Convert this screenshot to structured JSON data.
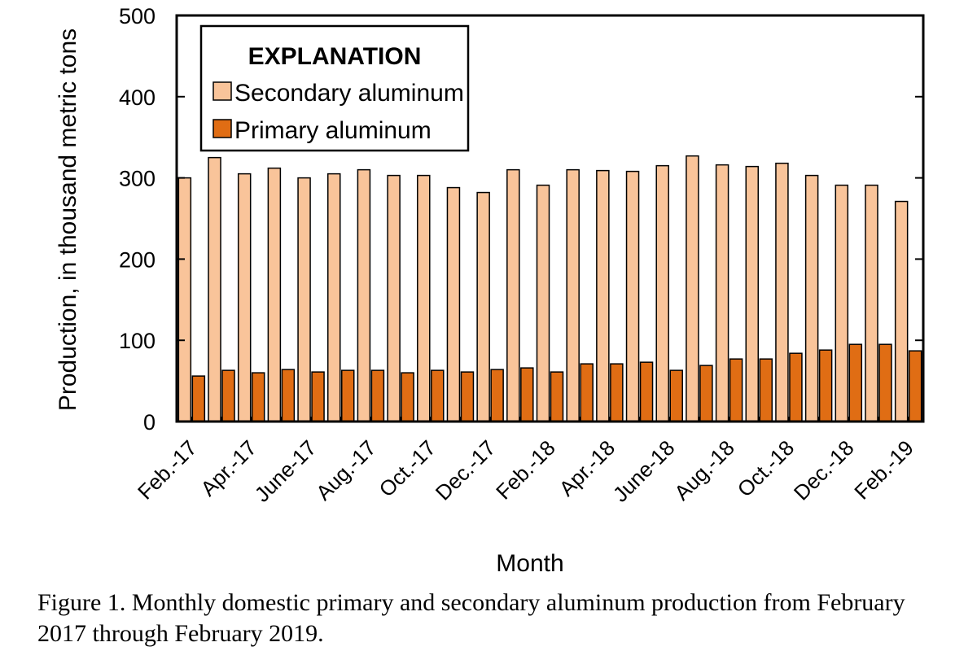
{
  "chart_data": {
    "type": "bar",
    "xlabel": "Month",
    "ylabel": "Production, in thousand metric tons",
    "ylim": [
      0,
      500
    ],
    "yticks": [
      0,
      100,
      200,
      300,
      400,
      500
    ],
    "grid": false,
    "legend": {
      "title": "EXPLANATION",
      "placement": "top-left"
    },
    "categories": [
      "Feb.-17",
      "Mar.-17",
      "Apr.-17",
      "May-17",
      "June-17",
      "July-17",
      "Aug.-17",
      "Sep.-17",
      "Oct.-17",
      "Nov.-17",
      "Dec.-17",
      "Jan.-18",
      "Feb.-18",
      "Mar.-18",
      "Apr.-18",
      "May-18",
      "June-18",
      "July-18",
      "Aug.-18",
      "Sep.-18",
      "Oct.-18",
      "Nov.-18",
      "Dec.-18",
      "Jan.-19",
      "Feb.-19"
    ],
    "shown_x_labels": [
      "Feb.-17",
      "Apr.-17",
      "June-17",
      "Aug.-17",
      "Oct.-17",
      "Dec.-17",
      "Feb.-18",
      "Apr.-18",
      "June-18",
      "Aug.-18",
      "Oct.-18",
      "Dec.-18",
      "Feb.-19"
    ],
    "series": [
      {
        "name": "Secondary aluminum",
        "color": "#f9c49a",
        "values": [
          300,
          325,
          305,
          312,
          300,
          305,
          310,
          303,
          303,
          288,
          282,
          310,
          291,
          310,
          309,
          308,
          315,
          327,
          316,
          314,
          318,
          303,
          291,
          291,
          271
        ]
      },
      {
        "name": "Primary aluminum",
        "color": "#e06d14",
        "values": [
          56,
          63,
          60,
          64,
          61,
          63,
          63,
          60,
          63,
          61,
          64,
          66,
          61,
          71,
          71,
          73,
          63,
          69,
          77,
          77,
          84,
          88,
          95,
          95,
          87
        ]
      }
    ]
  },
  "caption": "Figure 1. Monthly domestic primary and secondary aluminum production from February 2017 through February 2019."
}
